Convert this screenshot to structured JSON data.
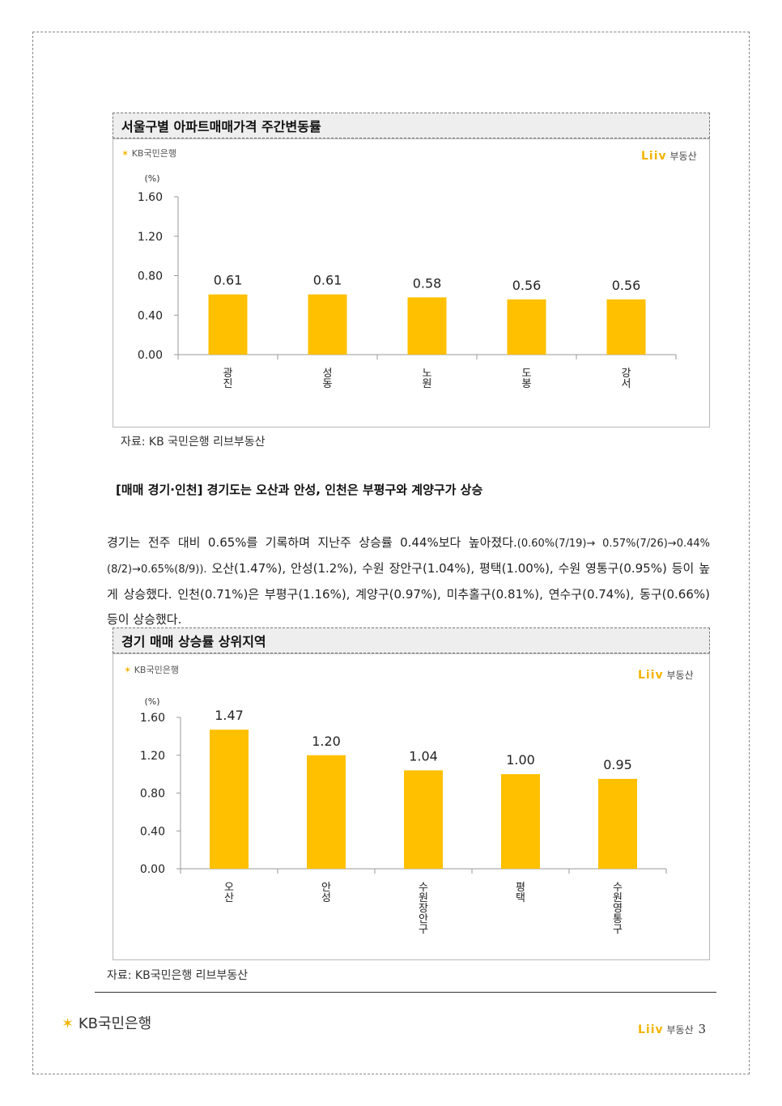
{
  "chart1": {
    "title": "서울구별 아파트매매가격 주간변동률",
    "kb_logo": "KB국민은행",
    "liiv_word": "Liiv",
    "liiv_suffix": "부동산",
    "source": "자료: KB 국민은행 리브부동산"
  },
  "section": {
    "subheading": "[매매 경기·인천] 경기도는 오산과 안성, 인천은 부평구와 계양구가 상승",
    "para_main": "경기는 전주 대비 0.65%를 기록하며 지난주 상승률 0.44%보다 높아졌다.",
    "para_small": "(0.60%(7/19)→ 0.57%(7/26)→0.44%(8/2)→0.65%(8/9)).",
    "para_rest": " 오산(1.47%), 안성(1.2%), 수원 장안구(1.04%), 평택(1.00%), 수원 영통구(0.95%) 등이 높게 상승했다. 인천(0.71%)은 부평구(1.16%), 계양구(0.97%), 미추홀구(0.81%), 연수구(0.74%), 동구(0.66%) 등이 상승했다."
  },
  "chart2": {
    "title": "경기 매매 상승률 상위지역",
    "kb_logo": "KB국민은행",
    "liiv_word": "Liiv",
    "liiv_suffix": "부동산",
    "source": "자료: KB국민은행 리브부동산"
  },
  "footer": {
    "kb_logo": "KB국민은행",
    "liiv_word": "Liiv",
    "liiv_suffix": "부동산",
    "page_number": "3"
  },
  "colors": {
    "bar": "#FFC000",
    "axis": "#999999"
  },
  "chart_data": [
    {
      "type": "bar",
      "title": "서울구별 아파트매매가격 주간변동률",
      "unit": "(%)",
      "categories": [
        "광진",
        "성동",
        "노원",
        "도봉",
        "강서"
      ],
      "values": [
        0.61,
        0.61,
        0.58,
        0.56,
        0.56
      ],
      "yticks": [
        "0.00",
        "0.40",
        "0.80",
        "1.20",
        "1.60"
      ],
      "ylim": [
        0,
        1.6
      ],
      "grid": false,
      "data_labels": [
        "0.61",
        "0.61",
        "0.58",
        "0.56",
        "0.56"
      ]
    },
    {
      "type": "bar",
      "title": "경기 매매 상승률 상위지역",
      "unit": "(%)",
      "categories": [
        "오산",
        "안성",
        "수원장안구",
        "평택",
        "수원영통구"
      ],
      "values": [
        1.47,
        1.2,
        1.04,
        1.0,
        0.95
      ],
      "yticks": [
        "0.00",
        "0.40",
        "0.80",
        "1.20",
        "1.60"
      ],
      "ylim": [
        0,
        1.6
      ],
      "grid": false,
      "data_labels": [
        "1.47",
        "1.20",
        "1.04",
        "1.00",
        "0.95"
      ]
    }
  ]
}
